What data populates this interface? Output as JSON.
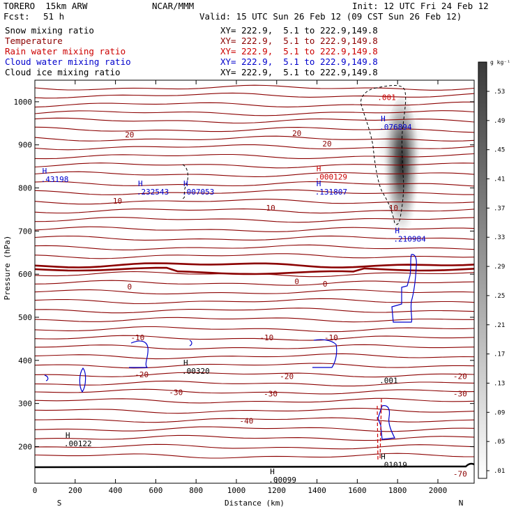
{
  "header": {
    "model": "TORERO  15km ARW",
    "org": "NCAR/MMM",
    "init": "Init: 12 UTC Fri 24 Feb 12",
    "fcst_label": "Fcst:",
    "fcst_value": "51 h",
    "valid": "Valid: 15 UTC Sun 26 Feb 12 (09 CST Sun 26 Feb 12)"
  },
  "legend": [
    {
      "name": "Snow mixing ratio",
      "color": "#000000",
      "xy": "XY= 222.9,  5.1 to 222.9,149.8"
    },
    {
      "name": "Temperature",
      "color": "#8b0000",
      "xy": "XY= 222.9,  5.1 to 222.9,149.8"
    },
    {
      "name": "Rain water mixing ratio",
      "color": "#cc0000",
      "xy": "XY= 222.9,  5.1 to 222.9,149.8"
    },
    {
      "name": "Cloud water mixing ratio",
      "color": "#0000cc",
      "xy": "XY= 222.9,  5.1 to 222.9,149.8"
    },
    {
      "name": "Cloud ice mixing ratio",
      "color": "#000000",
      "xy": "XY= 222.9,  5.1 to 222.9,149.8"
    }
  ],
  "chart_data": {
    "type": "cross-section",
    "xlabel": "Distance (km)",
    "ylabel": "Pressure (hPa)",
    "xlim": [
      0,
      2180
    ],
    "ylim": [
      1050,
      115
    ],
    "x_ticks": [
      0,
      200,
      400,
      600,
      800,
      1000,
      1200,
      1400,
      1600,
      1800,
      2000
    ],
    "y_ticks": [
      200,
      300,
      400,
      500,
      600,
      700,
      800,
      900,
      1000
    ],
    "x_end_labels": {
      "left": "S",
      "right": "N"
    },
    "colorbar": {
      "unit": "g kg⁻¹",
      "ticks": [
        ".53",
        ".49",
        ".45",
        ".41",
        ".37",
        ".33",
        ".29",
        ".25",
        ".21",
        ".17",
        ".13",
        ".09",
        ".05",
        ".01"
      ]
    },
    "temperature_labels": [
      {
        "value": "-70",
        "x": 2110,
        "p": 137
      },
      {
        "value": "-40",
        "x": 1050,
        "p": 260
      },
      {
        "value": "-30",
        "x": 700,
        "p": 326
      },
      {
        "value": "-30",
        "x": 1170,
        "p": 323
      },
      {
        "value": "-30",
        "x": 2110,
        "p": 323
      },
      {
        "value": "-20",
        "x": 530,
        "p": 367
      },
      {
        "value": "-20",
        "x": 1250,
        "p": 363
      },
      {
        "value": "-20",
        "x": 2110,
        "p": 363
      },
      {
        "value": "-10",
        "x": 510,
        "p": 453
      },
      {
        "value": "-10",
        "x": 1150,
        "p": 453
      },
      {
        "value": "-10",
        "x": 1470,
        "p": 453
      },
      {
        "value": "0",
        "x": 470,
        "p": 571
      },
      {
        "value": "0",
        "x": 1300,
        "p": 583
      },
      {
        "value": "0",
        "x": 1440,
        "p": 578
      },
      {
        "value": "10",
        "x": 410,
        "p": 770
      },
      {
        "value": "10",
        "x": 1170,
        "p": 754
      },
      {
        "value": "10",
        "x": 1780,
        "p": 754
      },
      {
        "value": "20",
        "x": 470,
        "p": 924
      },
      {
        "value": "20",
        "x": 1300,
        "p": 927
      },
      {
        "value": "20",
        "x": 1450,
        "p": 903
      }
    ],
    "extrema": [
      {
        "field": "snow",
        "letter": "H",
        "value": ".00122",
        "x": 145,
        "p": 204
      },
      {
        "field": "snow",
        "letter": "H",
        "value": ".00320",
        "x": 730,
        "p": 372
      },
      {
        "field": "snow",
        "letter": "H",
        "value": ".00099",
        "x": 1160,
        "p": 120
      },
      {
        "field": "snow",
        "letter": "H",
        "value": ".01019",
        "x": 1710,
        "p": 155
      },
      {
        "field": "snow",
        "letter": "",
        "value": ".001",
        "x": 1710,
        "p": 350
      },
      {
        "field": "cloud_water",
        "letter": "H",
        "value": ".232543",
        "x": 505,
        "p": 788
      },
      {
        "field": "cloud_water",
        "letter": "H",
        "value": ".007053",
        "x": 730,
        "p": 788
      },
      {
        "field": "cloud_water",
        "letter": "H",
        "value": ".131807",
        "x": 1390,
        "p": 788
      },
      {
        "field": "cloud_water",
        "letter": "H",
        "value": ".43198",
        "x": 30,
        "p": 817
      },
      {
        "field": "cloud_water",
        "letter": "H",
        "value": ".210984",
        "x": 1780,
        "p": 679
      },
      {
        "field": "cloud_water",
        "letter": "H",
        "value": ".076894",
        "x": 1710,
        "p": 938
      },
      {
        "field": "rain",
        "letter": "H",
        "value": ".000129",
        "x": 1390,
        "p": 823
      },
      {
        "field": "rain",
        "letter": "",
        "value": ".001",
        "x": 1700,
        "p": 1007
      }
    ]
  }
}
